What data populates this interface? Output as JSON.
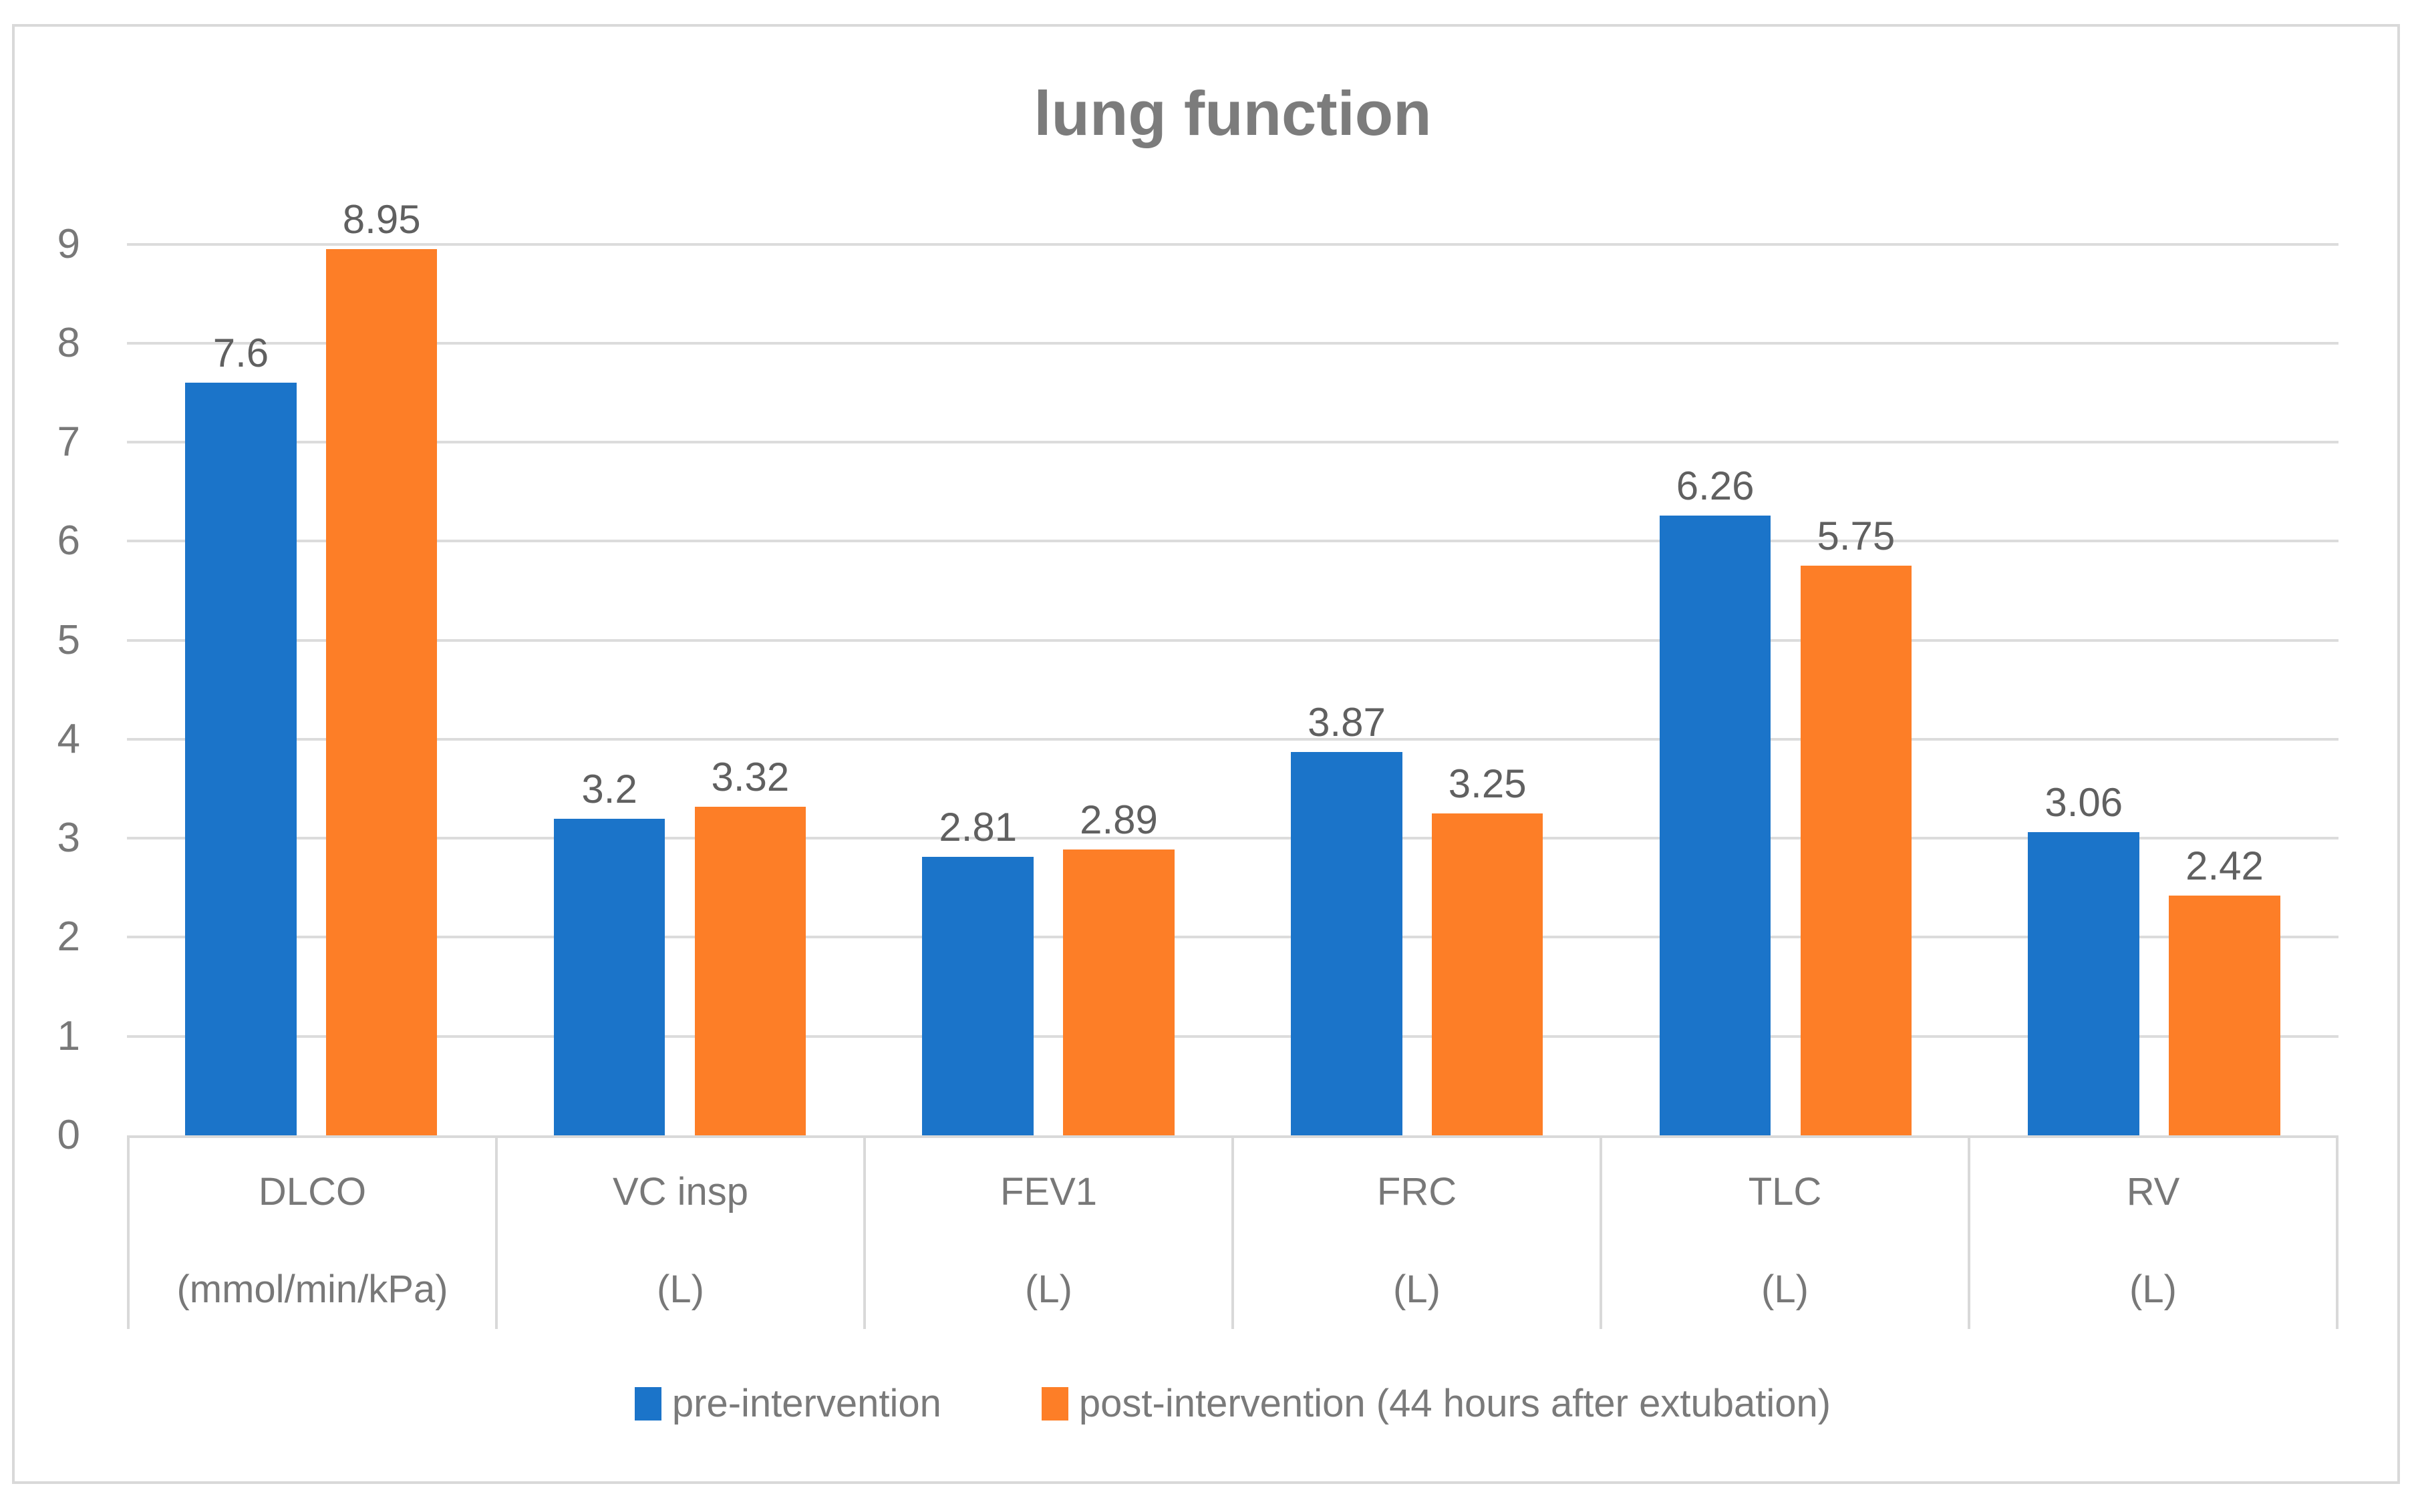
{
  "chart_data": {
    "type": "bar",
    "title": "lung function",
    "categories": [
      {
        "name": "DLCO",
        "unit": "(mmol/min/kPa)"
      },
      {
        "name": "VC insp",
        "unit": "(L)"
      },
      {
        "name": "FEV1",
        "unit": "(L)"
      },
      {
        "name": "FRC",
        "unit": "(L)"
      },
      {
        "name": "TLC",
        "unit": "(L)"
      },
      {
        "name": "RV",
        "unit": "(L)"
      }
    ],
    "series": [
      {
        "name": "pre-intervention",
        "color": "#1B74C9",
        "values": [
          7.6,
          3.2,
          2.81,
          3.87,
          6.26,
          3.06
        ],
        "labels": [
          "7.6",
          "3.2",
          "2.81",
          "3.87",
          "6.26",
          "3.06"
        ]
      },
      {
        "name": "post-intervention (44 hours after extubation)",
        "color": "#FD7E27",
        "values": [
          8.95,
          3.32,
          2.89,
          3.25,
          5.75,
          2.42
        ],
        "labels": [
          "8.95",
          "3.32",
          "2.89",
          "3.25",
          "5.75",
          "2.42"
        ]
      }
    ],
    "y_axis": {
      "min": 0,
      "max": 9,
      "step": 1,
      "tick_labels": [
        "0",
        "1",
        "2",
        "3",
        "4",
        "5",
        "6",
        "7",
        "8",
        "9"
      ]
    },
    "grid": true,
    "legend_position": "bottom",
    "value_labels_position": "outside-end"
  },
  "colors": {
    "background": "#FFFFFF",
    "frame_border": "#D9D9D9",
    "gridline": "#DCDCDC",
    "title_text": "#7C7C7C",
    "axis_text": "#787878",
    "data_label_text": "#606060",
    "legend_text": "#7A7A7A",
    "series_pre": "#1B74C9",
    "series_post": "#FD7E27"
  }
}
